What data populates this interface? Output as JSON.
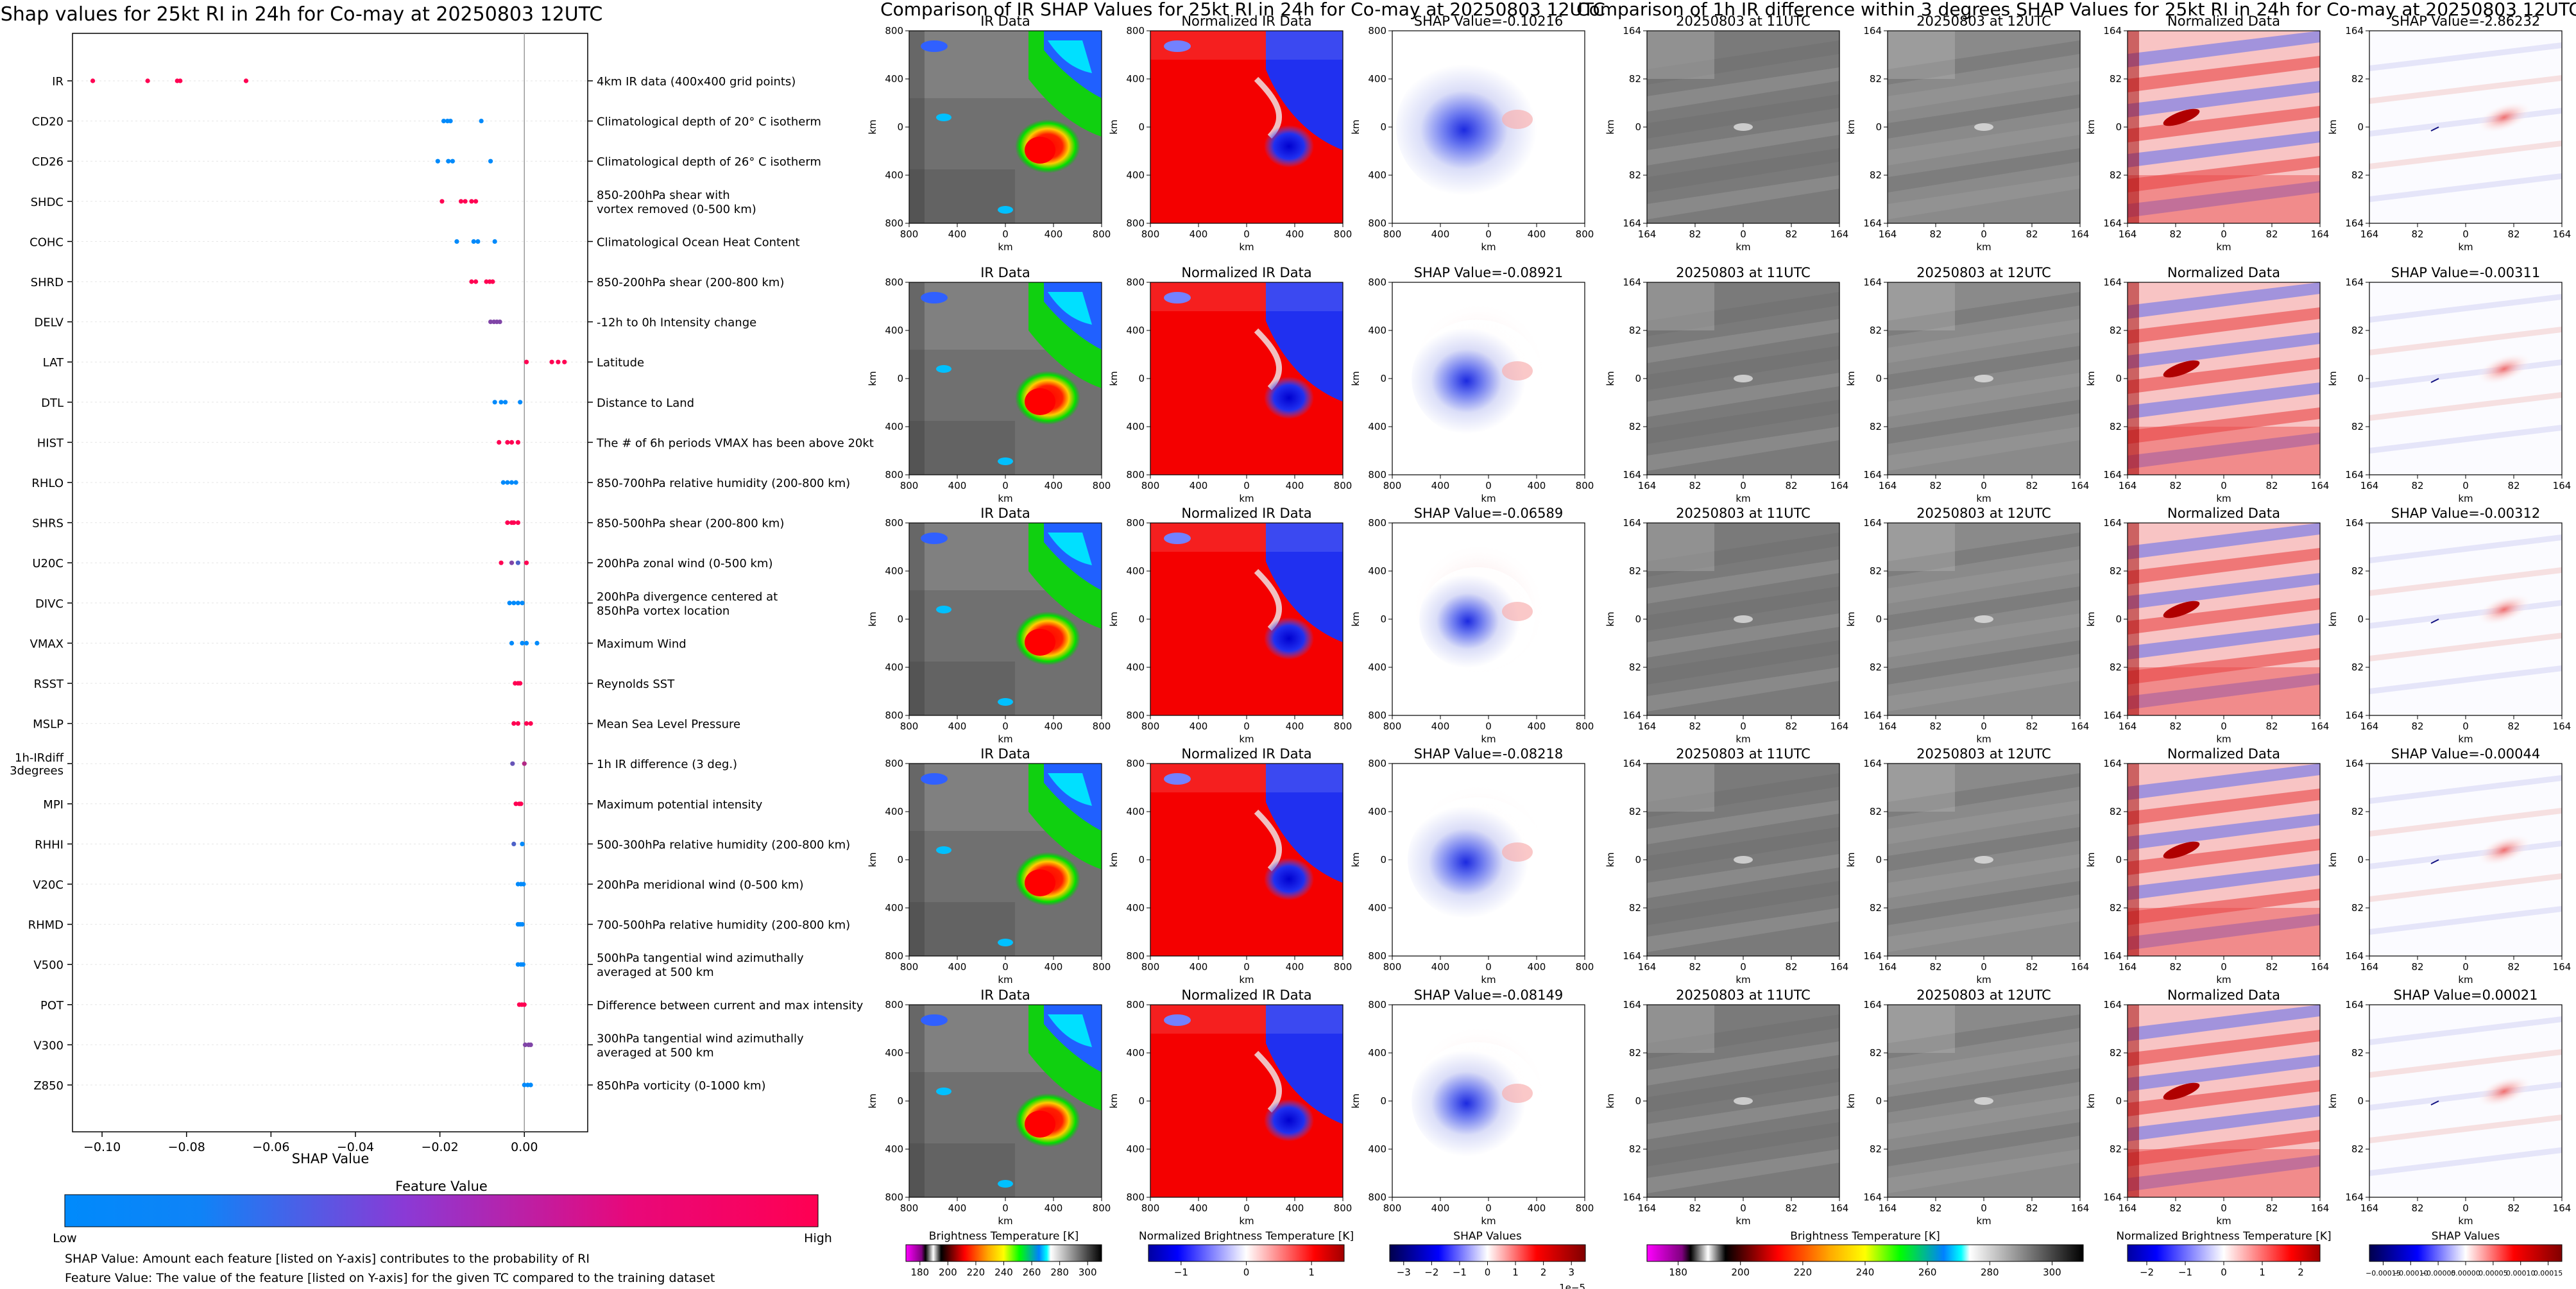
{
  "colors": {
    "low": "#008afb",
    "high": "#ff0052",
    "axis": "#000000",
    "zero_line": "#999999",
    "grid": "#e6e6e6"
  },
  "chart_data": [
    {
      "type": "scatter",
      "title": "Shap values for 25kt RI in 24h for Co-may at 20250803 12UTC",
      "xlabel": "SHAP Value",
      "xlim": [
        -0.107,
        0.015
      ],
      "xticks": [
        "−0.10",
        "−0.08",
        "−0.06",
        "−0.04",
        "−0.02",
        "0.00"
      ],
      "xtick_values": [
        -0.1,
        -0.08,
        -0.06,
        -0.04,
        -0.02,
        0.0
      ],
      "features": [
        {
          "name": "IR",
          "description": "4km IR data (400x400 grid points)",
          "points": [
            [
              -0.1022,
              1
            ],
            [
              -0.0892,
              1
            ],
            [
              -0.0822,
              1
            ],
            [
              -0.0815,
              1
            ],
            [
              -0.0659,
              1
            ]
          ]
        },
        {
          "name": "CD20",
          "description": "Climatological depth of 20° C isotherm",
          "points": [
            [
              -0.0191,
              0
            ],
            [
              -0.0182,
              0
            ],
            [
              -0.0175,
              0
            ],
            [
              -0.0102,
              0
            ]
          ]
        },
        {
          "name": "CD26",
          "description": "Climatological depth of 26° C isotherm",
          "points": [
            [
              -0.0205,
              0
            ],
            [
              -0.018,
              0
            ],
            [
              -0.017,
              0
            ],
            [
              -0.008,
              0
            ]
          ]
        },
        {
          "name": "SHDC",
          "description": "850-200hPa shear with\nvortex removed (0-500 km)",
          "points": [
            [
              -0.0195,
              1
            ],
            [
              -0.015,
              1
            ],
            [
              -0.014,
              1
            ],
            [
              -0.0125,
              1
            ],
            [
              -0.0115,
              1
            ]
          ]
        },
        {
          "name": "COHC",
          "description": "Climatological Ocean Heat Content",
          "points": [
            [
              -0.016,
              0
            ],
            [
              -0.012,
              0
            ],
            [
              -0.011,
              0
            ],
            [
              -0.007,
              0
            ]
          ]
        },
        {
          "name": "SHRD",
          "description": "850-200hPa shear (200-800 km)",
          "points": [
            [
              -0.0125,
              1
            ],
            [
              -0.0115,
              1
            ],
            [
              -0.009,
              1
            ],
            [
              -0.0082,
              1
            ],
            [
              -0.0075,
              1
            ]
          ]
        },
        {
          "name": "DELV",
          "description": "-12h to 0h Intensity change",
          "points": [
            [
              -0.008,
              0.5
            ],
            [
              -0.0072,
              0.5
            ],
            [
              -0.0065,
              0.5
            ],
            [
              -0.0058,
              0.5
            ]
          ]
        },
        {
          "name": "LAT",
          "description": "Latitude",
          "points": [
            [
              0.0005,
              1
            ],
            [
              0.0065,
              1
            ],
            [
              0.008,
              1
            ],
            [
              0.0095,
              1
            ]
          ]
        },
        {
          "name": "DTL",
          "description": "Distance to Land",
          "points": [
            [
              -0.007,
              0
            ],
            [
              -0.0055,
              0
            ],
            [
              -0.0045,
              0
            ],
            [
              -0.001,
              0
            ]
          ]
        },
        {
          "name": "HIST",
          "description": "The # of 6h periods VMAX has been above 20kt",
          "points": [
            [
              -0.006,
              1
            ],
            [
              -0.004,
              1
            ],
            [
              -0.003,
              1
            ],
            [
              -0.0015,
              1
            ]
          ]
        },
        {
          "name": "RHLO",
          "description": "850-700hPa relative humidity (200-800 km)",
          "points": [
            [
              -0.005,
              0
            ],
            [
              -0.004,
              0
            ],
            [
              -0.003,
              0
            ],
            [
              -0.002,
              0
            ]
          ]
        },
        {
          "name": "SHRS",
          "description": "850-500hPa shear (200-800 km)",
          "points": [
            [
              -0.004,
              1
            ],
            [
              -0.003,
              1
            ],
            [
              -0.0025,
              1
            ],
            [
              -0.0015,
              1
            ]
          ]
        },
        {
          "name": "U20C",
          "description": "200hPa zonal wind (0-500 km)",
          "points": [
            [
              -0.0055,
              1
            ],
            [
              -0.003,
              0.5
            ],
            [
              -0.0015,
              0.3
            ],
            [
              0.0005,
              1
            ]
          ]
        },
        {
          "name": "DIVC",
          "description": "200hPa divergence centered at\n850hPa vortex location",
          "points": [
            [
              -0.0035,
              0
            ],
            [
              -0.0025,
              0
            ],
            [
              -0.0015,
              0
            ],
            [
              -0.0005,
              0
            ]
          ]
        },
        {
          "name": "VMAX",
          "description": "Maximum Wind",
          "points": [
            [
              -0.003,
              0
            ],
            [
              -0.0005,
              0
            ],
            [
              0.0005,
              0
            ],
            [
              0.003,
              0
            ]
          ]
        },
        {
          "name": "RSST",
          "description": "Reynolds SST",
          "points": [
            [
              -0.0022,
              1
            ],
            [
              -0.0015,
              1
            ],
            [
              -0.001,
              1
            ]
          ]
        },
        {
          "name": "MSLP",
          "description": "Mean Sea Level Pressure",
          "points": [
            [
              -0.0025,
              1
            ],
            [
              -0.0015,
              1
            ],
            [
              0.0005,
              1
            ],
            [
              0.0015,
              1
            ]
          ]
        },
        {
          "name": "1h-IRdiff\n3degrees",
          "description": "1h IR difference (3 deg.)",
          "points": [
            [
              -0.0028,
              0.4
            ],
            [
              0.0,
              0.7
            ]
          ]
        },
        {
          "name": "MPI",
          "description": "Maximum potential intensity",
          "points": [
            [
              -0.002,
              1
            ],
            [
              -0.0012,
              1
            ],
            [
              -0.0008,
              1
            ]
          ]
        },
        {
          "name": "RHHI",
          "description": "500-300hPa relative humidity (200-800 km)",
          "points": [
            [
              -0.0025,
              0.3
            ],
            [
              -0.0005,
              0
            ]
          ]
        },
        {
          "name": "V20C",
          "description": "200hPa meridional wind (0-500 km)",
          "points": [
            [
              -0.0015,
              0
            ],
            [
              -0.0008,
              0
            ],
            [
              -0.0002,
              0
            ]
          ]
        },
        {
          "name": "RHMD",
          "description": "700-500hPa relative humidity (200-800 km)",
          "points": [
            [
              -0.0015,
              0
            ],
            [
              -0.001,
              0
            ],
            [
              -0.0005,
              0
            ]
          ]
        },
        {
          "name": "V500",
          "description": "500hPa tangential wind azimuthally\naveraged at 500 km",
          "points": [
            [
              -0.0015,
              0
            ],
            [
              -0.0008,
              0
            ],
            [
              -0.0003,
              0
            ]
          ]
        },
        {
          "name": "POT",
          "description": "Difference between current and max intensity",
          "points": [
            [
              -0.0012,
              1
            ],
            [
              -0.0006,
              1
            ],
            [
              0.0,
              1
            ]
          ]
        },
        {
          "name": "V300",
          "description": "300hPa tangential wind azimuthally\naveraged at 500 km",
          "points": [
            [
              0.0002,
              0.5
            ],
            [
              0.001,
              0.5
            ],
            [
              0.0015,
              0.5
            ]
          ]
        },
        {
          "name": "Z850",
          "description": "850hPa vorticity (0-1000 km)",
          "points": [
            [
              0.0,
              0
            ],
            [
              0.0008,
              0
            ],
            [
              0.0015,
              0
            ]
          ]
        }
      ],
      "colorbar": {
        "title": "Feature Value",
        "low": "Low",
        "high": "High"
      },
      "notes": [
        "SHAP Value: Amount each feature [listed on Y-axis] contributes to the probability of RI",
        "Feature Value: The value of the feature [listed on Y-axis] for the given TC compared to the training dataset"
      ]
    },
    {
      "type": "heatmap",
      "title": "Comparison of IR SHAP Values for 25kt RI in 24h for Co-may at 20250803 12UTC",
      "columns": [
        "IR Data",
        "Normalized IR Data",
        "SHAP Value"
      ],
      "shap_values": [
        "-0.10216",
        "-0.08921",
        "-0.06589",
        "-0.08218",
        "-0.08149"
      ],
      "xticks": [
        "800",
        "400",
        "0",
        "400",
        "800"
      ],
      "yticks": [
        "800",
        "400",
        "0",
        "400",
        "800"
      ],
      "xlabel": "km",
      "ylabel": "km",
      "colorbars": [
        {
          "label": "Brightness Temperature [K]",
          "ticks": [
            "180",
            "200",
            "220",
            "240",
            "260",
            "280",
            "300"
          ]
        },
        {
          "label": "Normalized Brightness Temperature [K]",
          "ticks": [
            "−1",
            "0",
            "1"
          ]
        },
        {
          "label": "SHAP Values",
          "ticks": [
            "−3",
            "−2",
            "−1",
            "0",
            "1",
            "2",
            "3"
          ],
          "exponent": "1e−5"
        }
      ]
    },
    {
      "type": "heatmap",
      "title": "Comparison of 1h IR difference within 3 degrees SHAP Values for 25kt RI in 24h for Co-may at 20250803 12UTC",
      "columns": [
        "20250803 at 11UTC",
        "20250803 at 12UTC",
        "Normalized Data",
        "SHAP Value"
      ],
      "shap_values": [
        "-2.86232",
        "-0.00311",
        "-0.00312",
        "-0.00044",
        "0.00021"
      ],
      "xticks": [
        "164",
        "82",
        "0",
        "82",
        "164"
      ],
      "yticks": [
        "164",
        "82",
        "0",
        "82",
        "164"
      ],
      "xlabel": "km",
      "ylabel": "km",
      "colorbars": [
        {
          "label": "Brightness Temperature [K]",
          "ticks": [
            "180",
            "200",
            "220",
            "240",
            "260",
            "280",
            "300"
          ]
        },
        {
          "label": "Normalized Brightness Temperature [K]",
          "ticks": [
            "−2",
            "−1",
            "0",
            "1",
            "2"
          ]
        },
        {
          "label": "SHAP Values",
          "ticks": [
            "−0.00015",
            "−0.00010",
            "−0.00005",
            "0.00000",
            "0.00005",
            "0.00010",
            "0.00015"
          ]
        }
      ]
    }
  ]
}
